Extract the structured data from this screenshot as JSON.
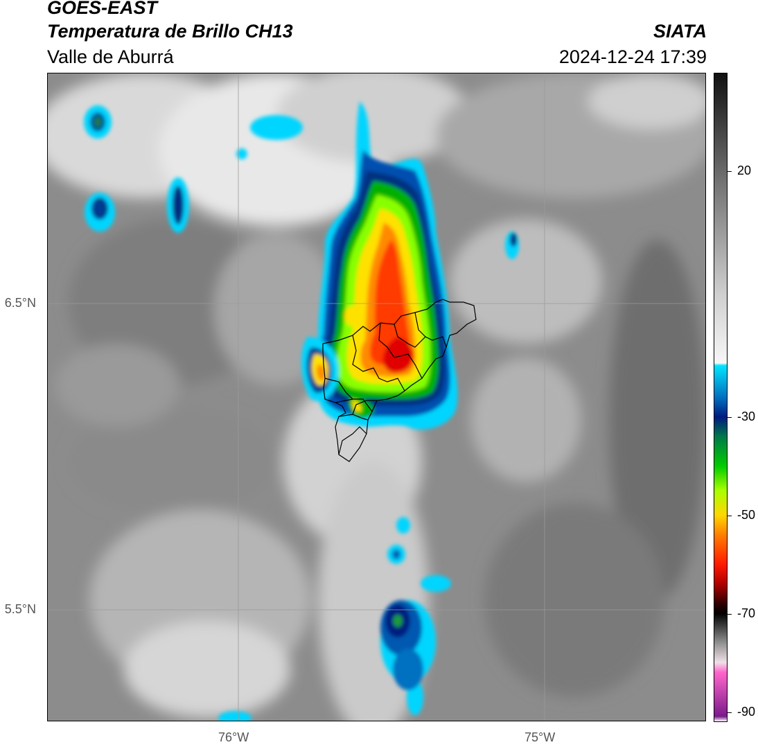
{
  "header": {
    "satellite": "GOES-EAST",
    "product": "Temperatura de Brillo CH13",
    "region": "Valle de Aburrá",
    "organization": "SIATA",
    "datetime": "2024-12-24 17:39"
  },
  "map": {
    "lat_labels": [
      "6.5°N",
      "5.5°N"
    ],
    "lon_labels": [
      "76°W",
      "75°W"
    ],
    "lat_values": [
      6.5,
      5.5
    ],
    "lon_values": [
      -76.0,
      -75.0
    ],
    "lat_range": [
      5.137,
      7.253
    ],
    "lon_range": [
      -76.625,
      -74.473
    ]
  },
  "colorbar": {
    "tick_labels": [
      "20",
      "-30",
      "-50",
      "-70",
      "-90"
    ],
    "tick_values": [
      20,
      -30,
      -50,
      -70,
      -90
    ],
    "range": [
      -92,
      40
    ],
    "stops": [
      {
        "value": 40,
        "color": "#111111"
      },
      {
        "value": 20,
        "color": "#6a6a6a"
      },
      {
        "value": -5,
        "color": "#cfcfcf"
      },
      {
        "value": -19,
        "color": "#f7f7f7"
      },
      {
        "value": -19.5,
        "color": "#00e5ff"
      },
      {
        "value": -26,
        "color": "#0070c0"
      },
      {
        "value": -30,
        "color": "#001a80"
      },
      {
        "value": -34,
        "color": "#007a4a"
      },
      {
        "value": -40,
        "color": "#00cc00"
      },
      {
        "value": -45,
        "color": "#aaff00"
      },
      {
        "value": -50,
        "color": "#ffd700"
      },
      {
        "value": -54,
        "color": "#ff7f00"
      },
      {
        "value": -60,
        "color": "#ff1a00"
      },
      {
        "value": -64,
        "color": "#b00000"
      },
      {
        "value": -68,
        "color": "#300000"
      },
      {
        "value": -70,
        "color": "#000000"
      },
      {
        "value": -76,
        "color": "#909090"
      },
      {
        "value": -80,
        "color": "#f0e0e8"
      },
      {
        "value": -82,
        "color": "#ff66cc"
      },
      {
        "value": -91,
        "color": "#7a1a8a"
      },
      {
        "value": -92,
        "color": "#ffffff"
      }
    ]
  }
}
